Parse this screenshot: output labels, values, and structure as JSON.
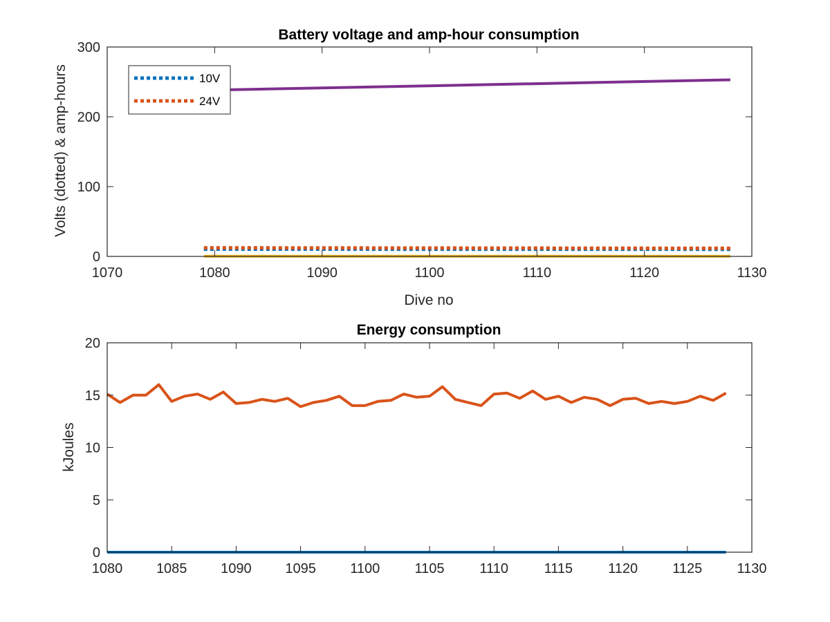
{
  "chart_data": [
    {
      "type": "line",
      "title": "Battery voltage and amp-hour consumption",
      "xlabel": "Dive no",
      "ylabel": "Volts (dotted) & amp-hours",
      "xlim": [
        1070,
        1130
      ],
      "ylim": [
        0,
        300
      ],
      "xticks": [
        "1070",
        "1080",
        "1090",
        "1100",
        "1110",
        "1120",
        "1130"
      ],
      "yticks": [
        "0",
        "100",
        "200",
        "300"
      ],
      "grid": false,
      "legend": {
        "placement": "top-left",
        "entries": [
          "10V",
          "24V"
        ]
      },
      "series": [
        {
          "name": "10V",
          "style": "dotted",
          "color": "#0072BD",
          "x": [
            1079,
            1128
          ],
          "y": [
            10.4,
            10.2
          ]
        },
        {
          "name": "24V",
          "style": "dotted",
          "color": "#D95319",
          "x": [
            1079,
            1128
          ],
          "y": [
            12.3,
            11.6
          ]
        },
        {
          "style": "solid",
          "color": "#7E2F8E",
          "x": [
            1079,
            1128
          ],
          "y": [
            238,
            253
          ]
        },
        {
          "style": "solid",
          "color": "#EDB120",
          "x": [
            1079,
            1128
          ],
          "y": [
            0.3,
            0.3
          ]
        }
      ]
    },
    {
      "type": "line",
      "title": "Energy consumption",
      "xlabel": "",
      "ylabel": "kJoules",
      "xlim": [
        1080,
        1130
      ],
      "ylim": [
        0,
        20
      ],
      "xticks": [
        "1080",
        "1085",
        "1090",
        "1095",
        "1100",
        "1105",
        "1110",
        "1115",
        "1120",
        "1125",
        "1130"
      ],
      "yticks": [
        "0",
        "5",
        "10",
        "15",
        "20"
      ],
      "grid": false,
      "series": [
        {
          "style": "solid",
          "color": "#D95319",
          "x": [
            1080,
            1081,
            1082,
            1083,
            1084,
            1085,
            1086,
            1087,
            1088,
            1089,
            1090,
            1091,
            1092,
            1093,
            1094,
            1095,
            1096,
            1097,
            1098,
            1099,
            1100,
            1101,
            1102,
            1103,
            1104,
            1105,
            1106,
            1107,
            1108,
            1109,
            1110,
            1111,
            1112,
            1113,
            1114,
            1115,
            1116,
            1117,
            1118,
            1119,
            1120,
            1121,
            1122,
            1123,
            1124,
            1125,
            1126,
            1127,
            1128
          ],
          "y": [
            15.1,
            14.3,
            15.0,
            15.0,
            16.0,
            14.4,
            14.9,
            15.1,
            14.6,
            15.3,
            14.2,
            14.3,
            14.6,
            14.4,
            14.7,
            13.9,
            14.3,
            14.5,
            14.9,
            14.0,
            14.0,
            14.4,
            14.5,
            15.1,
            14.8,
            14.9,
            15.8,
            14.6,
            14.3,
            14.0,
            15.1,
            15.2,
            14.7,
            15.4,
            14.6,
            14.9,
            14.3,
            14.8,
            14.6,
            14.0,
            14.6,
            14.7,
            14.2,
            14.4,
            14.2,
            14.4,
            14.9,
            14.5,
            15.2
          ]
        },
        {
          "style": "solid",
          "color": "#0072BD",
          "x": [
            1080,
            1128
          ],
          "y": [
            0,
            0
          ]
        }
      ]
    }
  ]
}
